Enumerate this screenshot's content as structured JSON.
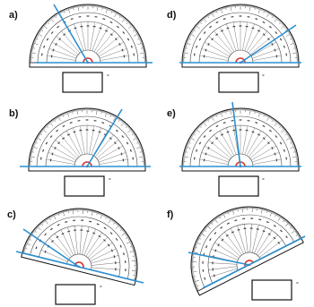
{
  "problems": [
    {
      "label": "a)",
      "degree_symbol": "°",
      "answer": ""
    },
    {
      "label": "d)",
      "degree_symbol": "°",
      "answer": ""
    },
    {
      "label": "b)",
      "degree_symbol": "°",
      "answer": ""
    },
    {
      "label": "e)",
      "degree_symbol": "°",
      "answer": ""
    },
    {
      "label": "c)",
      "degree_symbol": "°",
      "answer": ""
    },
    {
      "label": "f)",
      "degree_symbol": "°",
      "answer": ""
    }
  ],
  "colors": {
    "line": "#2a8fd0",
    "vertex": "#d9342b",
    "ink": "#111111",
    "tick": "#444444"
  }
}
